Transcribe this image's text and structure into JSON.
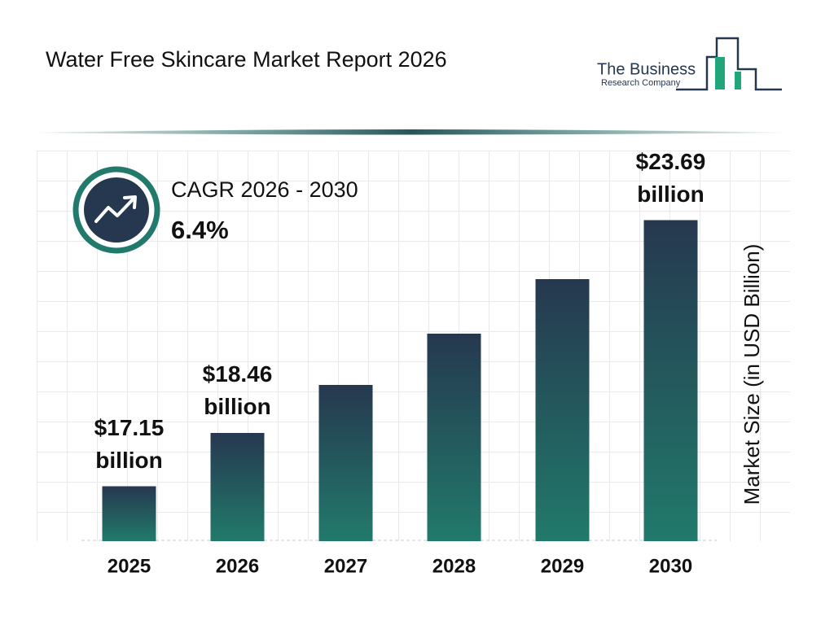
{
  "title": "Water Free Skincare Market Report 2026",
  "logo": {
    "line1": "The Business",
    "line2": "Research Company"
  },
  "cagr": {
    "label": "CAGR 2026 - 2030",
    "value": "6.4%"
  },
  "chart_data": {
    "type": "bar",
    "y_axis_label": "Market Size (in USD Billion)",
    "categories": [
      "2025",
      "2026",
      "2027",
      "2028",
      "2029",
      "2030"
    ],
    "values": [
      17.15,
      18.46,
      19.64,
      20.9,
      22.24,
      23.69
    ],
    "value_labels": [
      "$17.15 billion",
      "$18.46 billion",
      null,
      null,
      null,
      "$23.69 billion"
    ],
    "colors": [
      "#26384f",
      "#217a6b"
    ],
    "ylim": [
      15.8,
      25.3
    ]
  }
}
